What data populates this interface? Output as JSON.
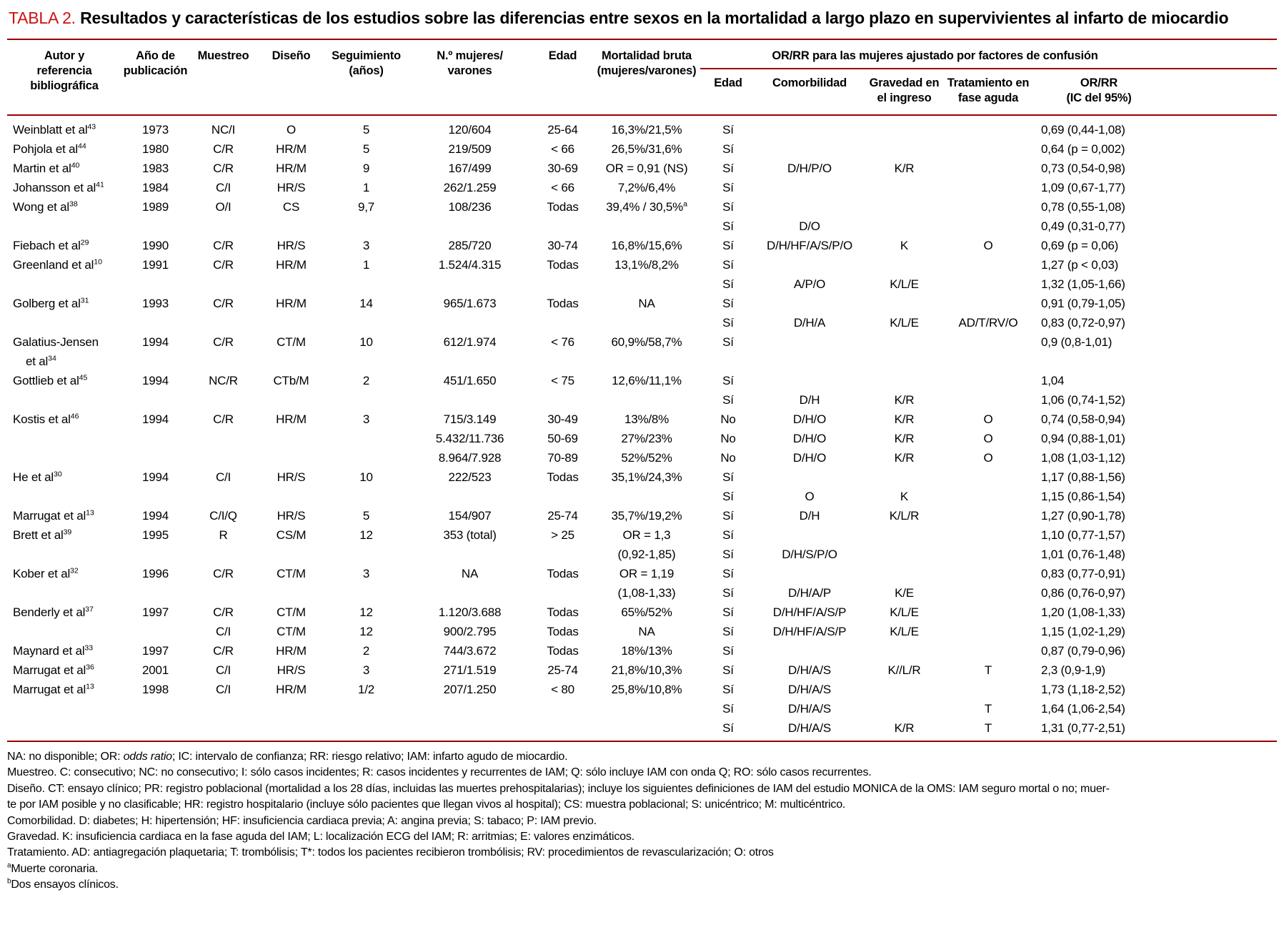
{
  "colors": {
    "rule": "#9b0000",
    "title_label": "#cc1111"
  },
  "title": {
    "label": "TABLA 2.",
    "text": "Resultados y características de los estudios sobre las diferencias entre sexos en la mortalidad a largo plazo en supervivientes al infarto de miocardio"
  },
  "table": {
    "main_headers": [
      {
        "lines": [
          "Autor y",
          "referencia",
          "bibliográfica"
        ]
      },
      {
        "lines": [
          "Año de",
          "publicación"
        ]
      },
      {
        "lines": [
          "Muestreo"
        ]
      },
      {
        "lines": [
          "Diseño"
        ]
      },
      {
        "lines": [
          "Seguimiento",
          "(años)"
        ]
      },
      {
        "lines": [
          "N.º mujeres/",
          "varones"
        ]
      },
      {
        "lines": [
          "Edad"
        ]
      },
      {
        "lines": [
          "Mortalidad bruta",
          "(mujeres/varones)"
        ]
      }
    ],
    "span_header": "OR/RR para las mujeres ajustado por factores de confusión",
    "sub_headers": [
      {
        "lines": [
          "Edad"
        ]
      },
      {
        "lines": [
          "Comorbilidad"
        ]
      },
      {
        "lines": [
          "Gravedad en",
          "el ingreso"
        ]
      },
      {
        "lines": [
          "Tratamiento en",
          "fase aguda"
        ]
      },
      {
        "lines": [
          "OR/RR",
          "(IC del 95%)"
        ]
      }
    ],
    "rows": [
      {
        "a": "Weinblatt et al",
        "as": "43",
        "y": "1973",
        "m": "NC/I",
        "d": "O",
        "s": "5",
        "n": "120/604",
        "e": "25-64",
        "mb": "16,3%/21,5%",
        "aj": "Sí",
        "or": "0,69 (0,44-1,08)"
      },
      {
        "a": "Pohjola et al",
        "as": "44",
        "y": "1980",
        "m": "C/R",
        "d": "HR/M",
        "s": "5",
        "n": "219/509",
        "e": "< 66",
        "mb": "26,5%/31,6%",
        "aj": "Sí",
        "or": "0,64 (p = 0,002)"
      },
      {
        "a": "Martin et al",
        "as": "40",
        "y": "1983",
        "m": "C/R",
        "d": "HR/M",
        "s": "9",
        "n": "167/499",
        "e": "30-69",
        "mb": "OR = 0,91 (NS)",
        "aj": "Sí",
        "co": "D/H/P/O",
        "g": "K/R",
        "or": "0,73 (0,54-0,98)"
      },
      {
        "a": "Johansson et al",
        "as": "41",
        "y": "1984",
        "m": "C/I",
        "d": "HR/S",
        "s": "1",
        "n": "262/1.259",
        "e": "< 66",
        "mb": "7,2%/6,4%",
        "aj": "Sí",
        "or": "1,09 (0,67-1,77)"
      },
      {
        "a": "Wong et al",
        "as": "38",
        "y": "1989",
        "m": "O/I",
        "d": "CS",
        "s": "9,7",
        "n": "108/236",
        "e": "Todas",
        "mb": "39,4% / 30,5%",
        "mbs": "a",
        "aj": "Sí",
        "or": "0,78 (0,55-1,08)"
      },
      {
        "aj": "Sí",
        "co": "D/O",
        "or": "0,49 (0,31-0,77)"
      },
      {
        "a": "Fiebach et al",
        "as": "29",
        "y": "1990",
        "m": "C/R",
        "d": "HR/S",
        "s": "3",
        "n": "285/720",
        "e": "30-74",
        "mb": "16,8%/15,6%",
        "aj": "Sí",
        "co": "D/H/HF/A/S/P/O",
        "g": "K",
        "t": "O",
        "or": "0,69 (p = 0,06)"
      },
      {
        "a": "Greenland et al",
        "as": "10",
        "y": "1991",
        "m": "C/R",
        "d": "HR/M",
        "s": "1",
        "n": "1.524/4.315",
        "e": "Todas",
        "mb": "13,1%/8,2%",
        "aj": "Sí",
        "or": "1,27 (p < 0,03)"
      },
      {
        "aj": "Sí",
        "co": "A/P/O",
        "g": "K/L/E",
        "or": "1,32 (1,05-1,66)"
      },
      {
        "a": "Golberg et al",
        "as": "31",
        "y": "1993",
        "m": "C/R",
        "d": "HR/M",
        "s": "14",
        "n": "965/1.673",
        "e": "Todas",
        "mb": "NA",
        "aj": "Sí",
        "or": "0,91 (0,79-1,05)"
      },
      {
        "aj": "Sí",
        "co": "D/H/A",
        "g": "K/L/E",
        "t": "AD/T/RV/O",
        "or": "0,83 (0,72-0,97)"
      },
      {
        "a": "Galatius-Jensen",
        "y": "1994",
        "m": "C/R",
        "d": "CT/M",
        "s": "10",
        "n": "612/1.974",
        "e": "< 76",
        "mb": "60,9%/58,7%",
        "aj": "Sí",
        "or": "0,9 (0,8-1,01)"
      },
      {
        "a": "et al",
        "as": "34",
        "indent": true
      },
      {
        "a": "Gottlieb et al",
        "as": "45",
        "y": "1994",
        "m": "NC/R",
        "d": "CTb/M",
        "s": "2",
        "n": "451/1.650",
        "e": "< 75",
        "mb": "12,6%/11,1%",
        "aj": "Sí",
        "or": "1,04"
      },
      {
        "aj": "Sí",
        "co": "D/H",
        "g": "K/R",
        "or": "1,06 (0,74-1,52)"
      },
      {
        "a": "Kostis et al",
        "as": "46",
        "y": "1994",
        "m": "C/R",
        "d": "HR/M",
        "s": "3",
        "n": "715/3.149",
        "e": "30-49",
        "mb": "13%/8%",
        "aj": "No",
        "co": "D/H/O",
        "g": "K/R",
        "t": "O",
        "or": "0,74 (0,58-0,94)"
      },
      {
        "n": "5.432/11.736",
        "e": "50-69",
        "mb": "27%/23%",
        "aj": "No",
        "co": "D/H/O",
        "g": "K/R",
        "t": "O",
        "or": "0,94 (0,88-1,01)"
      },
      {
        "n": "8.964/7.928",
        "e": "70-89",
        "mb": "52%/52%",
        "aj": "No",
        "co": "D/H/O",
        "g": "K/R",
        "t": "O",
        "or": "1,08 (1,03-1,12)"
      },
      {
        "a": "He et al",
        "as": "30",
        "y": "1994",
        "m": "C/I",
        "d": "HR/S",
        "s": "10",
        "n": "222/523",
        "e": "Todas",
        "mb": "35,1%/24,3%",
        "aj": "Sí",
        "or": "1,17 (0,88-1,56)"
      },
      {
        "aj": "Sí",
        "co": "O",
        "g": "K",
        "or": "1,15 (0,86-1,54)"
      },
      {
        "a": "Marrugat et al",
        "as": "13",
        "y": "1994",
        "m": "C/I/Q",
        "d": "HR/S",
        "s": "5",
        "n": "154/907",
        "e": "25-74",
        "mb": "35,7%/19,2%",
        "aj": "Sí",
        "co": "D/H",
        "g": "K/L/R",
        "or": "1,27 (0,90-1,78)"
      },
      {
        "a": "Brett et al",
        "as": "39",
        "y": "1995",
        "m": "R",
        "d": "CS/M",
        "s": "12",
        "n": "353 (total)",
        "e": "> 25",
        "mb": "OR = 1,3",
        "aj": "Sí",
        "or": "1,10 (0,77-1,57)"
      },
      {
        "mb": "(0,92-1,85)",
        "aj": "Sí",
        "co": "D/H/S/P/O",
        "or": "1,01 (0,76-1,48)"
      },
      {
        "a": "Kober et al",
        "as": "32",
        "y": "1996",
        "m": "C/R",
        "d": "CT/M",
        "s": "3",
        "n": "NA",
        "e": "Todas",
        "mb": "OR = 1,19",
        "aj": "Sí",
        "or": "0,83 (0,77-0,91)"
      },
      {
        "mb": "(1,08-1,33)",
        "aj": "Sí",
        "co": "D/H/A/P",
        "g": "K/E",
        "or": "0,86 (0,76-0,97)"
      },
      {
        "a": "Benderly et al",
        "as": "37",
        "y": "1997",
        "m": "C/R",
        "d": "CT/M",
        "s": "12",
        "n": "1.120/3.688",
        "e": "Todas",
        "mb": "65%/52%",
        "aj": "Sí",
        "co": "D/H/HF/A/S/P",
        "g": "K/L/E",
        "or": "1,20 (1,08-1,33)"
      },
      {
        "m": "C/I",
        "d": "CT/M",
        "s": "12",
        "n": "900/2.795",
        "e": "Todas",
        "mb": "NA",
        "aj": "Sí",
        "co": "D/H/HF/A/S/P",
        "g": "K/L/E",
        "or": "1,15 (1,02-1,29)"
      },
      {
        "a": "Maynard et al",
        "as": "33",
        "y": "1997",
        "m": "C/R",
        "d": "HR/M",
        "s": "2",
        "n": "744/3.672",
        "e": "Todas",
        "mb": "18%/13%",
        "aj": "Sí",
        "or": "0,87 (0,79-0,96)"
      },
      {
        "a": "Marrugat et al",
        "as": "36",
        "y": "2001",
        "m": "C/I",
        "d": "HR/S",
        "s": "3",
        "n": "271/1.519",
        "e": "25-74",
        "mb": "21,8%/10,3%",
        "aj": "Sí",
        "co": "D/H/A/S",
        "g": "K//L/R",
        "t": "T",
        "or": "2,3 (0,9-1,9)"
      },
      {
        "a": "Marrugat et al",
        "as": "13",
        "y": "1998",
        "m": "C/I",
        "d": "HR/M",
        "s": "1/2",
        "n": "207/1.250",
        "e": "< 80",
        "mb": "25,8%/10,8%",
        "aj": "Sí",
        "co": "D/H/A/S",
        "or": "1,73 (1,18-2,52)"
      },
      {
        "aj": "Sí",
        "co": "D/H/A/S",
        "t": "T",
        "or": "1,64 (1,06-2,54)"
      },
      {
        "aj": "Sí",
        "co": "D/H/A/S",
        "g": "K/R",
        "t": "T",
        "or": "1,31 (0,77-2,51)"
      }
    ]
  },
  "footnotes": [
    [
      {
        "t": "NA: no disponible; OR: "
      },
      {
        "t": "odds ratio",
        "i": true
      },
      {
        "t": "; IC: intervalo de confianza; RR: riesgo relativo; IAM: infarto agudo de miocardio."
      }
    ],
    [
      {
        "t": "Muestreo. C: consecutivo; NC: no consecutivo; I: sólo casos incidentes; R: casos incidentes y recurrentes de IAM; Q: sólo incluye IAM con onda Q; RO: sólo casos recurrentes."
      }
    ],
    [
      {
        "t": "Diseño. CT: ensayo clínico; PR: registro poblacional (mortalidad a los 28 días, incluidas las muertes prehospitalarias); incluye los siguientes definiciones de IAM del estudio MONICA de la OMS: IAM seguro mortal o no; muer-"
      }
    ],
    [
      {
        "t": "te por IAM posible y no clasificable; HR: registro hospitalario (incluye sólo pacientes que llegan vivos al hospital); CS: muestra poblacional; S: unicéntrico; M: multicéntrico."
      }
    ],
    [
      {
        "t": "Comorbilidad. D: diabetes; H: hipertensión; HF: insuficiencia cardiaca previa; A: angina previa; S: tabaco; P: IAM previo."
      }
    ],
    [
      {
        "t": "Gravedad. K: insuficiencia cardiaca en la fase aguda del IAM; L: localización ECG del IAM; R: arritmias; E: valores enzimáticos."
      }
    ],
    [
      {
        "t": "Tratamiento. AD: antiagregación plaquetaria; T: trombólisis; T*: todos los pacientes recibieron trombólisis; RV: procedimientos de revascularización; O: otros"
      }
    ],
    [
      {
        "t": "a",
        "sup": true
      },
      {
        "t": "Muerte coronaria."
      }
    ],
    [
      {
        "t": "b",
        "sup": true
      },
      {
        "t": "Dos ensayos clínicos."
      }
    ]
  ]
}
